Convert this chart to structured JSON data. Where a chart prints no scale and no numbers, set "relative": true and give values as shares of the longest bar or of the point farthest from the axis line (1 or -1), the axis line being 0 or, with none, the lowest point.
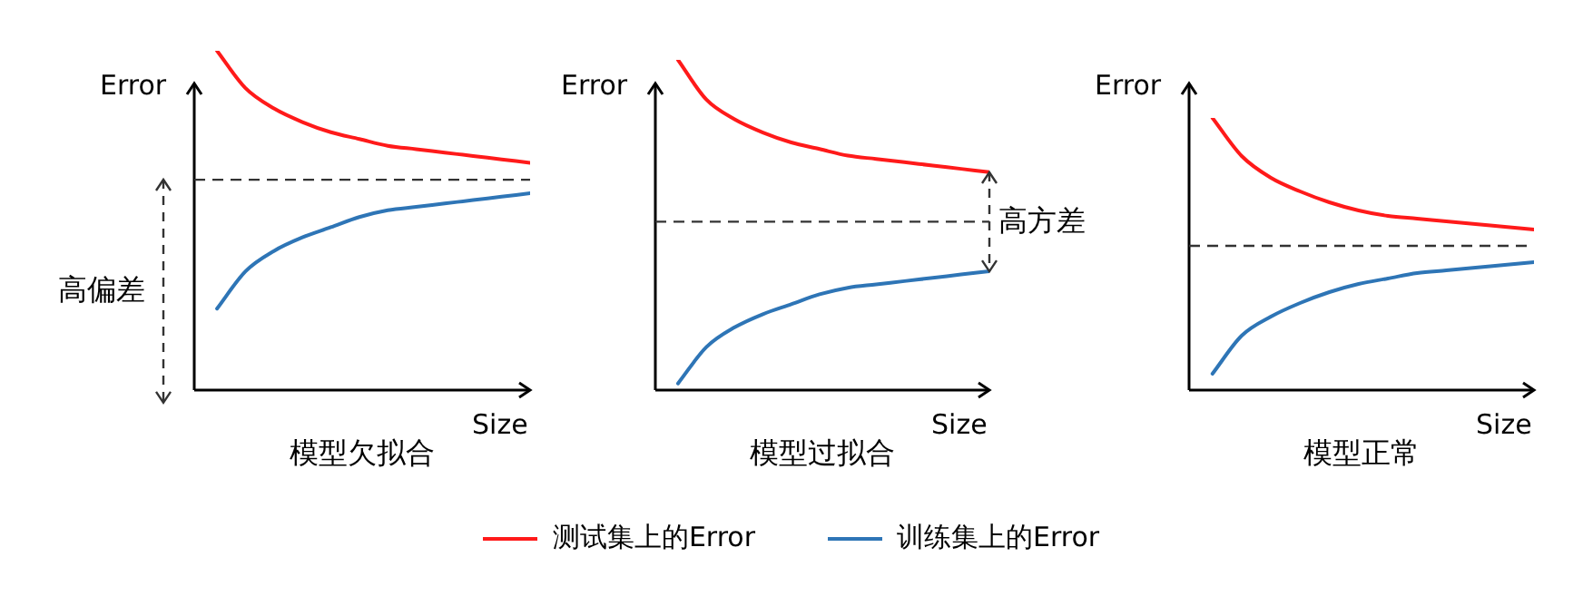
{
  "chart_data": [
    {
      "type": "line",
      "title": "模型欠拟合",
      "xlabel": "Size",
      "ylabel": "Error",
      "relative": true,
      "marker": "none",
      "legend": "bottom",
      "categories": [
        null,
        null,
        null,
        null,
        null,
        null,
        null,
        null,
        null,
        null,
        null,
        null
      ],
      "series": [
        {
          "name": "测试集上的Error",
          "color": "#ff1a1a",
          "values": [
            1,
            0.89,
            0.83,
            0.79,
            0.76,
            0.74,
            0.72,
            0.71,
            0.7,
            0.69,
            0.68,
            0.67
          ]
        },
        {
          "name": "训练集上的Error",
          "color": "#2e75b6",
          "values": [
            0.24,
            0.35,
            0.41,
            0.45,
            0.48,
            0.51,
            0.53,
            0.54,
            0.55,
            0.56,
            0.57,
            0.58
          ]
        }
      ],
      "ref_lines": [
        {
          "axis": "y",
          "value": 0.62,
          "line_style": "dashed",
          "color": "#333333"
        }
      ],
      "annotations": [
        "高偏差"
      ]
    },
    {
      "type": "line",
      "title": "模型过拟合",
      "xlabel": "Size",
      "ylabel": "Error",
      "relative": true,
      "marker": "none",
      "categories": [
        null,
        null,
        null,
        null,
        null,
        null,
        null,
        null,
        null,
        null,
        null,
        null
      ],
      "series": [
        {
          "color": "#ff1a1a",
          "values": [
            1,
            0.88,
            0.82,
            0.78,
            0.75,
            0.73,
            0.71,
            0.7,
            0.69,
            0.68,
            0.67,
            0.66
          ]
        },
        {
          "color": "#2e75b6",
          "values": [
            0.02,
            0.13,
            0.19,
            0.23,
            0.26,
            0.29,
            0.31,
            0.32,
            0.33,
            0.34,
            0.35,
            0.36
          ]
        }
      ],
      "ref_lines": [
        {
          "axis": "y",
          "value": 0.51,
          "line_style": "dashed",
          "color": "#333333"
        }
      ],
      "annotations": [
        "高方差"
      ]
    },
    {
      "type": "line",
      "title": "模型正常",
      "xlabel": "Size",
      "ylabel": "Error",
      "relative": true,
      "marker": "none",
      "categories": [
        null,
        null,
        null,
        null,
        null,
        null,
        null,
        null,
        null,
        null,
        null,
        null
      ],
      "series": [
        {
          "color": "#ff1a1a",
          "values": [
            1,
            0.86,
            0.78,
            0.73,
            0.69,
            0.66,
            0.64,
            0.63,
            0.62,
            0.61,
            0.6,
            0.59
          ]
        },
        {
          "color": "#2e75b6",
          "values": [
            0.06,
            0.2,
            0.27,
            0.32,
            0.36,
            0.39,
            0.41,
            0.43,
            0.44,
            0.45,
            0.46,
            0.47
          ]
        }
      ],
      "ref_lines": [
        {
          "axis": "y",
          "value": 0.53,
          "line_style": "dashed",
          "color": "#333333"
        }
      ]
    }
  ]
}
